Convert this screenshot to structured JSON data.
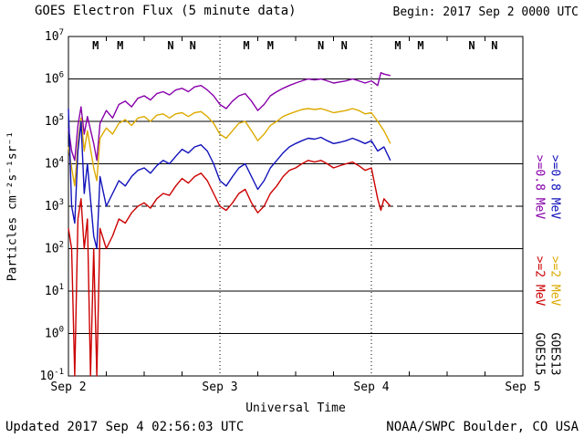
{
  "header": {
    "title": "GOES Electron Flux (5 minute data)",
    "begin": "Begin: 2017 Sep 2 0000 UTC"
  },
  "footer": {
    "updated": "Updated 2017 Sep 4 02:56:03 UTC",
    "credit": "NOAA/SWPC Boulder, CO USA"
  },
  "y_axis": {
    "label": "Particles cm⁻²s⁻¹sr⁻¹",
    "exponents": [
      7,
      6,
      5,
      4,
      3,
      2,
      1,
      0,
      -1
    ],
    "threshold_exponent": 3
  },
  "x_axis": {
    "label": "Universal Time",
    "tick_labels": [
      "Sep 2",
      "Sep 3",
      "Sep 4",
      "Sep 5"
    ],
    "tick_hours": [
      0,
      24,
      48,
      72
    ],
    "range_hours": [
      0,
      72
    ],
    "minor_tick_step_hours": 6,
    "day_boundary_hours": [
      24,
      48
    ]
  },
  "legend": {
    "e08": {
      "label": ">=0.8 MeV",
      "colors": [
        "#8800aa",
        "#1111bb"
      ]
    },
    "e2": {
      "label": ">=2 MeV",
      "colors": [
        "#cc0000",
        "#ddaa00"
      ]
    },
    "satellites": [
      "GOES15",
      "GOES13"
    ]
  },
  "markers": [
    {
      "label": "M",
      "color": "#cc0000",
      "hour": 4.3
    },
    {
      "label": "M",
      "color": "#1111bb",
      "hour": 8.2
    },
    {
      "label": "N",
      "color": "#cc0000",
      "hour": 16.2
    },
    {
      "label": "N",
      "color": "#1111bb",
      "hour": 19.7
    },
    {
      "label": "M",
      "color": "#cc0000",
      "hour": 28.2
    },
    {
      "label": "M",
      "color": "#1111bb",
      "hour": 32.0
    },
    {
      "label": "N",
      "color": "#cc0000",
      "hour": 40.0
    },
    {
      "label": "N",
      "color": "#1111bb",
      "hour": 43.7
    },
    {
      "label": "M",
      "color": "#cc0000",
      "hour": 52.2
    },
    {
      "label": "M",
      "color": "#1111bb",
      "hour": 55.8
    },
    {
      "label": "N",
      "color": "#cc0000",
      "hour": 63.9
    },
    {
      "label": "N",
      "color": "#1111bb",
      "hour": 67.5
    }
  ],
  "chart_data": {
    "type": "line",
    "title": "GOES Electron Flux (5 minute data)",
    "xlabel": "Universal Time",
    "ylabel": "Particles cm-2 s-1 sr-1",
    "x_unit": "hours since 2017-09-02 00:00 UTC",
    "xlim_hours": [
      0,
      72
    ],
    "ylim_log10": [
      -1,
      7
    ],
    "grid": "horizontal solid each decade, dashed at 1e3, dotted vertical day boundaries",
    "legend_position": "right margin, rotated",
    "series": [
      {
        "name": "GOES15 >=0.8 MeV",
        "key": "goes15-e08",
        "color": "#8800aa",
        "points": [
          [
            0,
            70000.0
          ],
          [
            0.5,
            20000.0
          ],
          [
            1,
            12000.0
          ],
          [
            1.5,
            80000.0
          ],
          [
            2,
            220000.0
          ],
          [
            2.5,
            50000.0
          ],
          [
            3,
            130000.0
          ],
          [
            4,
            30000.0
          ],
          [
            4.5,
            12000.0
          ],
          [
            5,
            90000.0
          ],
          [
            6,
            180000.0
          ],
          [
            7,
            120000.0
          ],
          [
            8,
            250000.0
          ],
          [
            9,
            300000.0
          ],
          [
            10,
            220000.0
          ],
          [
            11,
            350000.0
          ],
          [
            12,
            400000.0
          ],
          [
            13,
            320000.0
          ],
          [
            14,
            450000.0
          ],
          [
            15,
            500000.0
          ],
          [
            16,
            420000.0
          ],
          [
            17,
            550000.0
          ],
          [
            18,
            600000.0
          ],
          [
            19,
            500000.0
          ],
          [
            20,
            650000.0
          ],
          [
            21,
            700000.0
          ],
          [
            22,
            550000.0
          ],
          [
            23,
            400000.0
          ],
          [
            24,
            250000.0
          ],
          [
            25,
            200000.0
          ],
          [
            26,
            300000.0
          ],
          [
            27,
            400000.0
          ],
          [
            28,
            450000.0
          ],
          [
            29,
            300000.0
          ],
          [
            30,
            180000.0
          ],
          [
            31,
            250000.0
          ],
          [
            32,
            400000.0
          ],
          [
            33,
            500000.0
          ],
          [
            34,
            600000.0
          ],
          [
            35,
            700000.0
          ],
          [
            36,
            800000.0
          ],
          [
            37,
            900000.0
          ],
          [
            38,
            1000000.0
          ],
          [
            39,
            950000.0
          ],
          [
            40,
            1000000.0
          ],
          [
            41,
            900000.0
          ],
          [
            42,
            800000.0
          ],
          [
            43,
            850000.0
          ],
          [
            44,
            900000.0
          ],
          [
            45,
            1000000.0
          ],
          [
            46,
            900000.0
          ],
          [
            47,
            800000.0
          ],
          [
            48,
            900000.0
          ],
          [
            49,
            700000.0
          ],
          [
            49.5,
            1400000.0
          ],
          [
            50,
            1300000.0
          ],
          [
            51,
            1200000.0
          ]
        ]
      },
      {
        "name": "GOES13 >=2 MeV",
        "key": "goes13-e2",
        "color": "#ddaa00",
        "points": [
          [
            0,
            25000.0
          ],
          [
            0.5,
            8000.0
          ],
          [
            1,
            3000.0
          ],
          [
            1.5,
            30000.0
          ],
          [
            2,
            120000.0
          ],
          [
            2.5,
            20000.0
          ],
          [
            3,
            60000.0
          ],
          [
            4,
            8000.0
          ],
          [
            4.5,
            4000.0
          ],
          [
            5,
            40000.0
          ],
          [
            6,
            70000.0
          ],
          [
            7,
            50000.0
          ],
          [
            8,
            90000.0
          ],
          [
            9,
            110000.0
          ],
          [
            10,
            80000.0
          ],
          [
            11,
            120000.0
          ],
          [
            12,
            130000.0
          ],
          [
            13,
            100000.0
          ],
          [
            14,
            140000.0
          ],
          [
            15,
            150000.0
          ],
          [
            16,
            120000.0
          ],
          [
            17,
            150000.0
          ],
          [
            18,
            160000.0
          ],
          [
            19,
            130000.0
          ],
          [
            20,
            160000.0
          ],
          [
            21,
            170000.0
          ],
          [
            22,
            130000.0
          ],
          [
            23,
            90000.0
          ],
          [
            24,
            50000.0
          ],
          [
            25,
            40000.0
          ],
          [
            26,
            60000.0
          ],
          [
            27,
            90000.0
          ],
          [
            28,
            100000.0
          ],
          [
            29,
            60000.0
          ],
          [
            30,
            35000.0
          ],
          [
            31,
            50000.0
          ],
          [
            32,
            80000.0
          ],
          [
            33,
            100000.0
          ],
          [
            34,
            130000.0
          ],
          [
            35,
            150000.0
          ],
          [
            36,
            170000.0
          ],
          [
            37,
            190000.0
          ],
          [
            38,
            200000.0
          ],
          [
            39,
            190000.0
          ],
          [
            40,
            200000.0
          ],
          [
            41,
            180000.0
          ],
          [
            42,
            160000.0
          ],
          [
            43,
            170000.0
          ],
          [
            44,
            180000.0
          ],
          [
            45,
            200000.0
          ],
          [
            46,
            180000.0
          ],
          [
            47,
            150000.0
          ],
          [
            48,
            160000.0
          ],
          [
            49,
            100000.0
          ],
          [
            50,
            60000.0
          ],
          [
            51,
            30000.0
          ]
        ]
      },
      {
        "name": "GOES13 >=0.8 MeV",
        "key": "goes13-e08",
        "color": "#1111bb",
        "points": [
          [
            0,
            200000.0
          ],
          [
            0.5,
            1000.0
          ],
          [
            1,
            400.0
          ],
          [
            1.5,
            20000.0
          ],
          [
            2,
            100000.0
          ],
          [
            2.5,
            2000.0
          ],
          [
            3,
            10000.0
          ],
          [
            4,
            200.0
          ],
          [
            4.5,
            100.0
          ],
          [
            5,
            5000.0
          ],
          [
            6,
            1000.0
          ],
          [
            7,
            2000.0
          ],
          [
            8,
            4000.0
          ],
          [
            9,
            3000.0
          ],
          [
            10,
            5000.0
          ],
          [
            11,
            7000.0
          ],
          [
            12,
            8000.0
          ],
          [
            13,
            6000.0
          ],
          [
            14,
            9000.0
          ],
          [
            15,
            12000.0
          ],
          [
            16,
            10000.0
          ],
          [
            17,
            15000.0
          ],
          [
            18,
            22000.0
          ],
          [
            19,
            18000.0
          ],
          [
            20,
            25000.0
          ],
          [
            21,
            28000.0
          ],
          [
            22,
            20000.0
          ],
          [
            23,
            10000.0
          ],
          [
            24,
            4000.0
          ],
          [
            25,
            3000.0
          ],
          [
            26,
            5000.0
          ],
          [
            27,
            8000.0
          ],
          [
            28,
            10000.0
          ],
          [
            29,
            5000.0
          ],
          [
            30,
            2500.0
          ],
          [
            31,
            4000.0
          ],
          [
            32,
            8000.0
          ],
          [
            33,
            12000.0
          ],
          [
            34,
            18000.0
          ],
          [
            35,
            25000.0
          ],
          [
            36,
            30000.0
          ],
          [
            37,
            35000.0
          ],
          [
            38,
            40000.0
          ],
          [
            39,
            38000.0
          ],
          [
            40,
            42000.0
          ],
          [
            41,
            35000.0
          ],
          [
            42,
            30000.0
          ],
          [
            43,
            32000.0
          ],
          [
            44,
            35000.0
          ],
          [
            45,
            40000.0
          ],
          [
            46,
            35000.0
          ],
          [
            47,
            30000.0
          ],
          [
            48,
            35000.0
          ],
          [
            49,
            20000.0
          ],
          [
            50,
            25000.0
          ],
          [
            51,
            12000.0
          ]
        ]
      },
      {
        "name": "GOES15 >=2 MeV",
        "key": "goes15-e2",
        "color": "#cc0000",
        "points": [
          [
            0,
            300.0
          ],
          [
            0.5,
            100.0
          ],
          [
            1,
            0.1
          ],
          [
            1.5,
            500.0
          ],
          [
            2,
            1500.0
          ],
          [
            2.5,
            100.0
          ],
          [
            3,
            500.0
          ],
          [
            3.5,
            0.1
          ],
          [
            4,
            100.0
          ],
          [
            4.5,
            0.1
          ],
          [
            5,
            300.0
          ],
          [
            6,
            100.0
          ],
          [
            7,
            200.0
          ],
          [
            8,
            500.0
          ],
          [
            9,
            400.0
          ],
          [
            10,
            700.0
          ],
          [
            11,
            1000.0
          ],
          [
            12,
            1200.0
          ],
          [
            13,
            900.0
          ],
          [
            14,
            1500.0
          ],
          [
            15,
            2000.0
          ],
          [
            16,
            1800.0
          ],
          [
            17,
            3000.0
          ],
          [
            18,
            4500.0
          ],
          [
            19,
            3500.0
          ],
          [
            20,
            5000.0
          ],
          [
            21,
            6000.0
          ],
          [
            22,
            4000.0
          ],
          [
            23,
            2000.0
          ],
          [
            24,
            1000.0
          ],
          [
            25,
            800.0
          ],
          [
            26,
            1200.0
          ],
          [
            27,
            2000.0
          ],
          [
            28,
            2500.0
          ],
          [
            29,
            1200.0
          ],
          [
            30,
            700.0
          ],
          [
            31,
            1000.0
          ],
          [
            32,
            2000.0
          ],
          [
            33,
            3000.0
          ],
          [
            34,
            5000.0
          ],
          [
            35,
            7000.0
          ],
          [
            36,
            8000.0
          ],
          [
            37,
            10000.0
          ],
          [
            38,
            12000.0
          ],
          [
            39,
            11000.0
          ],
          [
            40,
            12000.0
          ],
          [
            41,
            10000.0
          ],
          [
            42,
            8000.0
          ],
          [
            43,
            9000.0
          ],
          [
            44,
            10000.0
          ],
          [
            45,
            11000.0
          ],
          [
            46,
            9000.0
          ],
          [
            47,
            7000.0
          ],
          [
            48,
            8000.0
          ],
          [
            49,
            1500.0
          ],
          [
            49.5,
            800.0
          ],
          [
            50,
            1500.0
          ],
          [
            51,
            1000.0
          ]
        ]
      }
    ]
  }
}
